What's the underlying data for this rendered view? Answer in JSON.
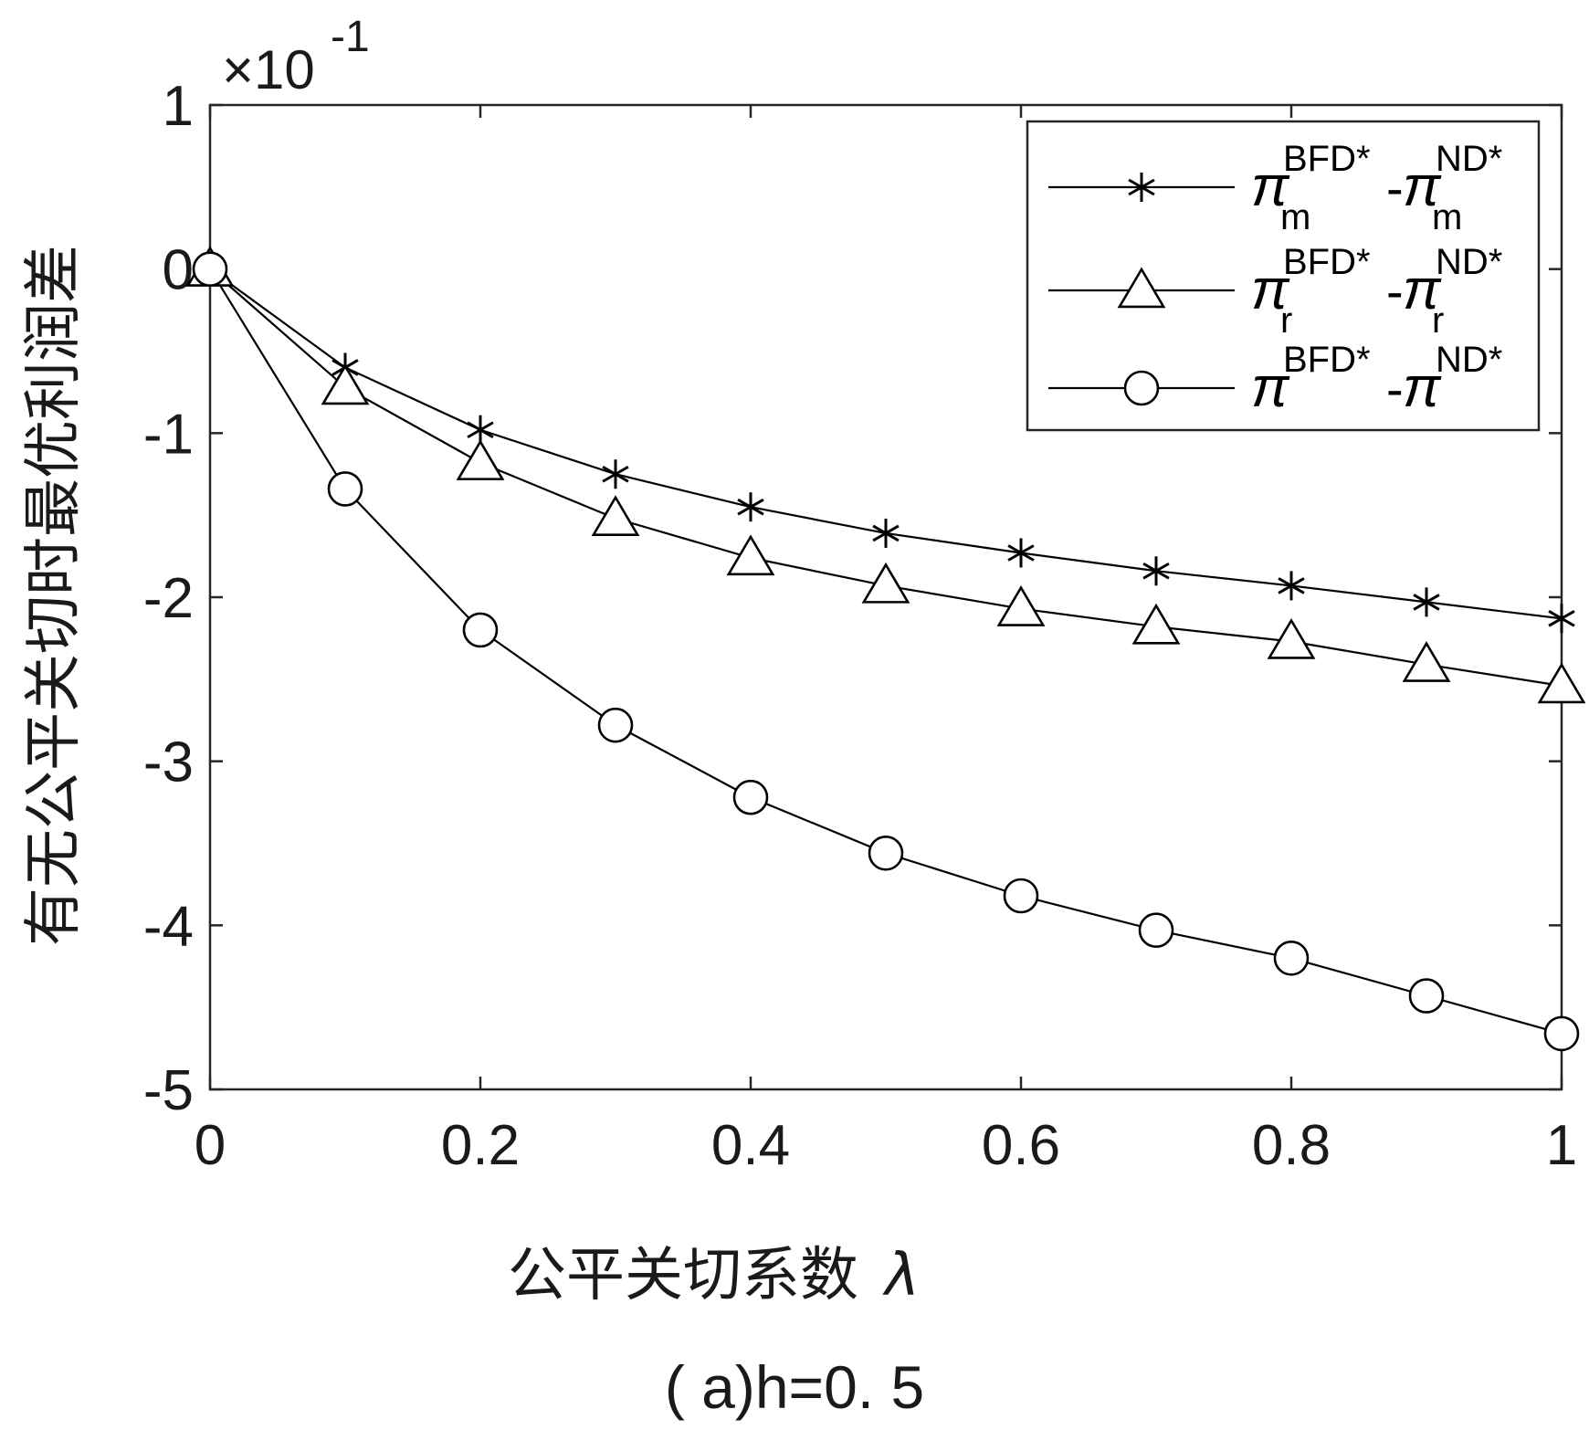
{
  "chart_data": {
    "type": "line",
    "xlabel": "公平关切系数",
    "xlabel_symbol": "λ",
    "ylabel": "有无公平关切时最优利润差",
    "caption": "( a)h=0. 5",
    "y_multiplier": {
      "base": "×10",
      "exponent": "-1"
    },
    "xlim": [
      0,
      1
    ],
    "ylim": [
      -5,
      1
    ],
    "x_ticks": [
      "0",
      "0.2",
      "0.4",
      "0.6",
      "0.8",
      "1"
    ],
    "x_tick_values": [
      0,
      0.2,
      0.4,
      0.6,
      0.8,
      1
    ],
    "y_ticks": [
      "1",
      "0",
      "-1",
      "-2",
      "-3",
      "-4",
      "-5"
    ],
    "y_tick_values": [
      1,
      0,
      -1,
      -2,
      -3,
      -4,
      -5
    ],
    "grid": false,
    "legend_position": "top-right",
    "x": [
      0,
      0.1,
      0.2,
      0.3,
      0.4,
      0.5,
      0.6,
      0.7,
      0.8,
      0.9,
      1.0
    ],
    "series": [
      {
        "marker": "asterisk",
        "legend": {
          "symbol": "π",
          "sub": "m",
          "sup1": "BFD*",
          "sep": "-",
          "sup2": "ND*"
        },
        "values": [
          0,
          -0.6,
          -0.98,
          -1.25,
          -1.45,
          -1.61,
          -1.73,
          -1.84,
          -1.93,
          -2.03,
          -2.13
        ]
      },
      {
        "marker": "triangle",
        "legend": {
          "symbol": "π",
          "sub": "r",
          "sup1": "BFD*",
          "sep": "-",
          "sup2": "ND*"
        },
        "values": [
          0,
          -0.72,
          -1.18,
          -1.52,
          -1.76,
          -1.93,
          -2.07,
          -2.18,
          -2.27,
          -2.41,
          -2.54
        ]
      },
      {
        "marker": "circle",
        "legend": {
          "symbol": "π",
          "sub": "",
          "sup1": "BFD*",
          "sep": "-",
          "sup2": "ND*"
        },
        "values": [
          0,
          -1.34,
          -2.2,
          -2.78,
          -3.22,
          -3.56,
          -3.82,
          -4.03,
          -4.2,
          -4.43,
          -4.66
        ]
      }
    ],
    "line_color": "#000000"
  }
}
